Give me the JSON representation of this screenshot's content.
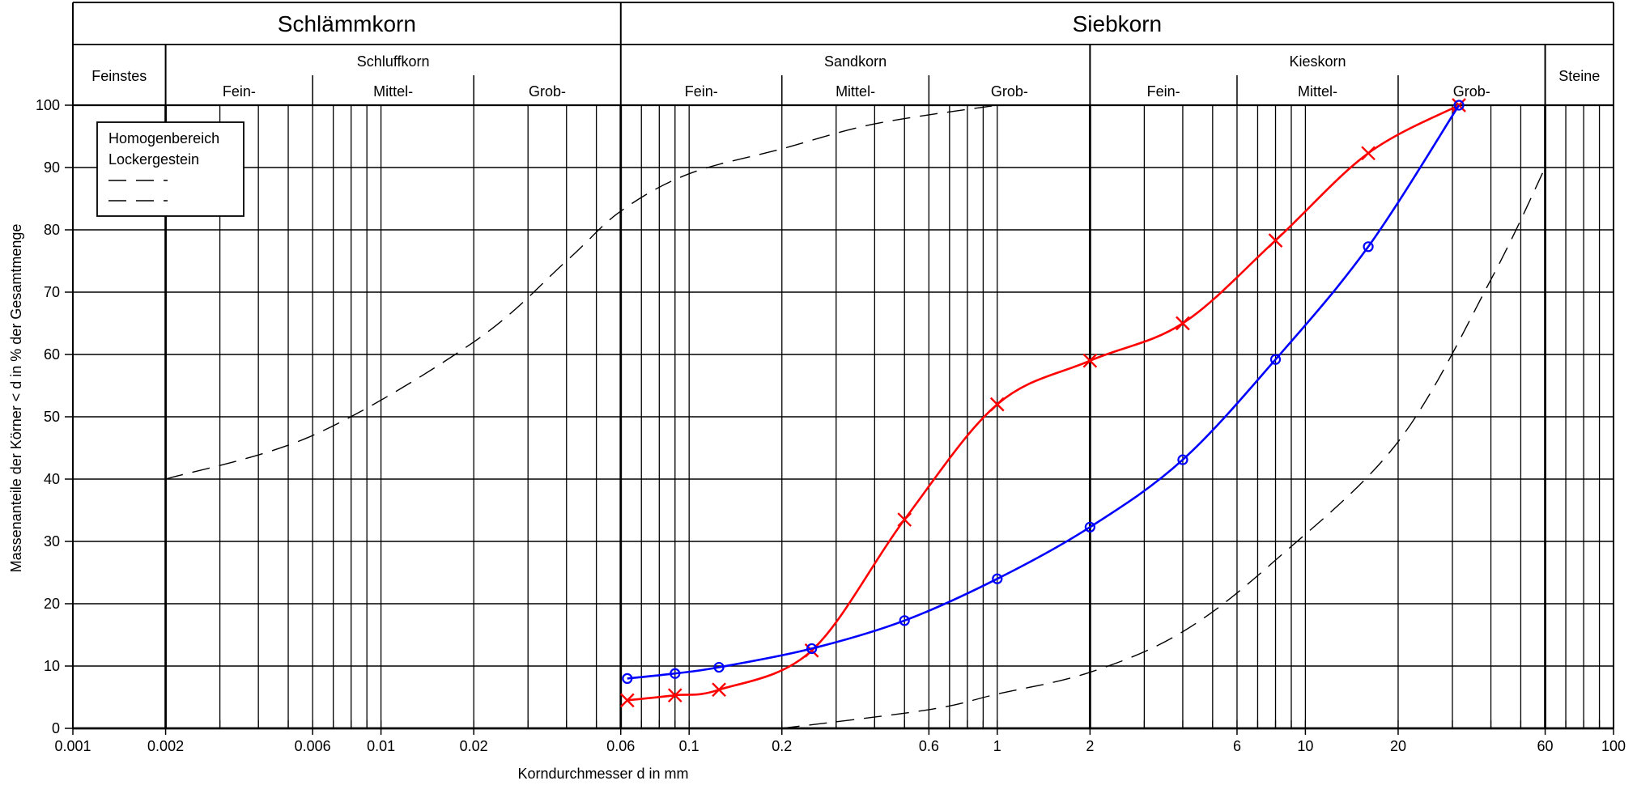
{
  "chart_data": {
    "type": "line",
    "x_scale": "log",
    "xlim": [
      0.001,
      100
    ],
    "ylim": [
      0,
      100
    ],
    "xlabel": "Korndurchmesser d in mm",
    "ylabel": "Massenanteile der Körner < d in % der Gesamtmenge",
    "grid": true,
    "x_ticks": [
      {
        "value": 0.001,
        "label": "0.001"
      },
      {
        "value": 0.002,
        "label": "0.002"
      },
      {
        "value": 0.006,
        "label": "0.006"
      },
      {
        "value": 0.01,
        "label": "0.01"
      },
      {
        "value": 0.02,
        "label": "0.02"
      },
      {
        "value": 0.06,
        "label": "0.06"
      },
      {
        "value": 0.1,
        "label": "0.1"
      },
      {
        "value": 0.2,
        "label": "0.2"
      },
      {
        "value": 0.6,
        "label": "0.6"
      },
      {
        "value": 1,
        "label": "1"
      },
      {
        "value": 2,
        "label": "2"
      },
      {
        "value": 6,
        "label": "6"
      },
      {
        "value": 10,
        "label": "10"
      },
      {
        "value": 20,
        "label": "20"
      },
      {
        "value": 60,
        "label": "60"
      },
      {
        "value": 100,
        "label": "100"
      }
    ],
    "y_ticks": [
      0,
      10,
      20,
      30,
      40,
      50,
      60,
      70,
      80,
      90,
      100
    ],
    "bold_boundaries": [
      0.002,
      0.06,
      2,
      60
    ],
    "header": {
      "groups": [
        {
          "label": "Schlämmkorn",
          "from": 0.001,
          "to": 0.06
        },
        {
          "label": "Siebkorn",
          "from": 0.06,
          "to": 100
        }
      ],
      "fractions": [
        {
          "label": "Feinstes",
          "from": 0.001,
          "to": 0.002,
          "subdivided": false
        },
        {
          "label": "Schluffkorn",
          "from": 0.002,
          "to": 0.06,
          "subdivided": true
        },
        {
          "label": "Sandkorn",
          "from": 0.06,
          "to": 2,
          "subdivided": true
        },
        {
          "label": "Kieskorn",
          "from": 2,
          "to": 60,
          "subdivided": true
        },
        {
          "label": "Steine",
          "from": 60,
          "to": 100,
          "subdivided": false
        }
      ],
      "subfractions": [
        {
          "label": "Fein-",
          "from": 0.002,
          "to": 0.006
        },
        {
          "label": "Mittel-",
          "from": 0.006,
          "to": 0.02
        },
        {
          "label": "Grob-",
          "from": 0.02,
          "to": 0.06
        },
        {
          "label": "Fein-",
          "from": 0.06,
          "to": 0.2
        },
        {
          "label": "Mittel-",
          "from": 0.2,
          "to": 0.6
        },
        {
          "label": "Grob-",
          "from": 0.6,
          "to": 2
        },
        {
          "label": "Fein-",
          "from": 2,
          "to": 6
        },
        {
          "label": "Mittel-",
          "from": 6,
          "to": 20
        },
        {
          "label": "Grob-",
          "from": 20,
          "to": 60
        }
      ]
    },
    "legend": {
      "placement": "top-left",
      "lines": [
        "Homogenbereich",
        "Lockergestein"
      ]
    },
    "series": [
      {
        "color": "#ff0000",
        "marker": "x",
        "style": "solid",
        "x": [
          0.063,
          0.09,
          0.125,
          0.25,
          0.5,
          1,
          2,
          4,
          8,
          16,
          31.5
        ],
        "y": [
          4.5,
          5.3,
          6.2,
          12.5,
          33.5,
          52,
          59,
          65,
          78.3,
          92.3,
          100
        ]
      },
      {
        "color": "#0000ff",
        "marker": "o",
        "style": "solid",
        "x": [
          0.063,
          0.09,
          0.125,
          0.25,
          0.5,
          1,
          2,
          4,
          8,
          16,
          31.5
        ],
        "y": [
          8,
          8.8,
          9.8,
          12.8,
          17.3,
          24,
          32.3,
          43.1,
          59.2,
          77.3,
          100
        ]
      },
      {
        "color": "#000000",
        "marker": "none",
        "style": "dashed",
        "x": [
          0.002,
          0.006,
          0.02,
          0.04,
          0.06,
          0.1,
          0.2,
          0.4,
          1
        ],
        "y": [
          40,
          47,
          62,
          75,
          83,
          89,
          93,
          97,
          100
        ]
      },
      {
        "color": "#000000",
        "marker": "none",
        "style": "dashed",
        "x": [
          0.2,
          0.6,
          1,
          2,
          4,
          8,
          20,
          40,
          60
        ],
        "y": [
          0,
          3,
          5.5,
          9,
          15.5,
          27,
          46,
          72,
          90
        ]
      }
    ]
  }
}
